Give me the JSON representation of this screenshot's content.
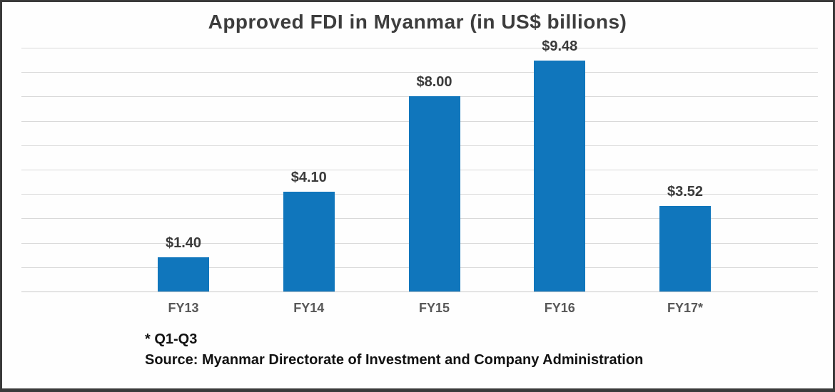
{
  "chart_data": {
    "type": "bar",
    "title": "Approved FDI in Myanmar (in US$ billions)",
    "categories": [
      "FY13",
      "FY14",
      "FY15",
      "FY16",
      "FY17*"
    ],
    "values": [
      1.4,
      4.1,
      8.0,
      9.48,
      3.52
    ],
    "value_labels": [
      "$1.40",
      "$4.10",
      "$8.00",
      "$9.48",
      "$3.52"
    ],
    "xlabel": "",
    "ylabel": "",
    "ylim": [
      0,
      10
    ],
    "grid_step": 1,
    "grid": "horizontal-only",
    "legend_position": "none",
    "bar_color": "#1076bc",
    "gridline_color": "#d9d9d9",
    "title_color": "#3d3d3d",
    "value_label_color": "#3b3b3b",
    "axis_label_color": "#585858"
  },
  "footnotes": {
    "asterisk_note": "* Q1-Q3",
    "source": "Source: Myanmar Directorate of Investment and Company Administration"
  },
  "frame": {
    "border_color": "#3a3a3a",
    "background": "#fefefe"
  }
}
